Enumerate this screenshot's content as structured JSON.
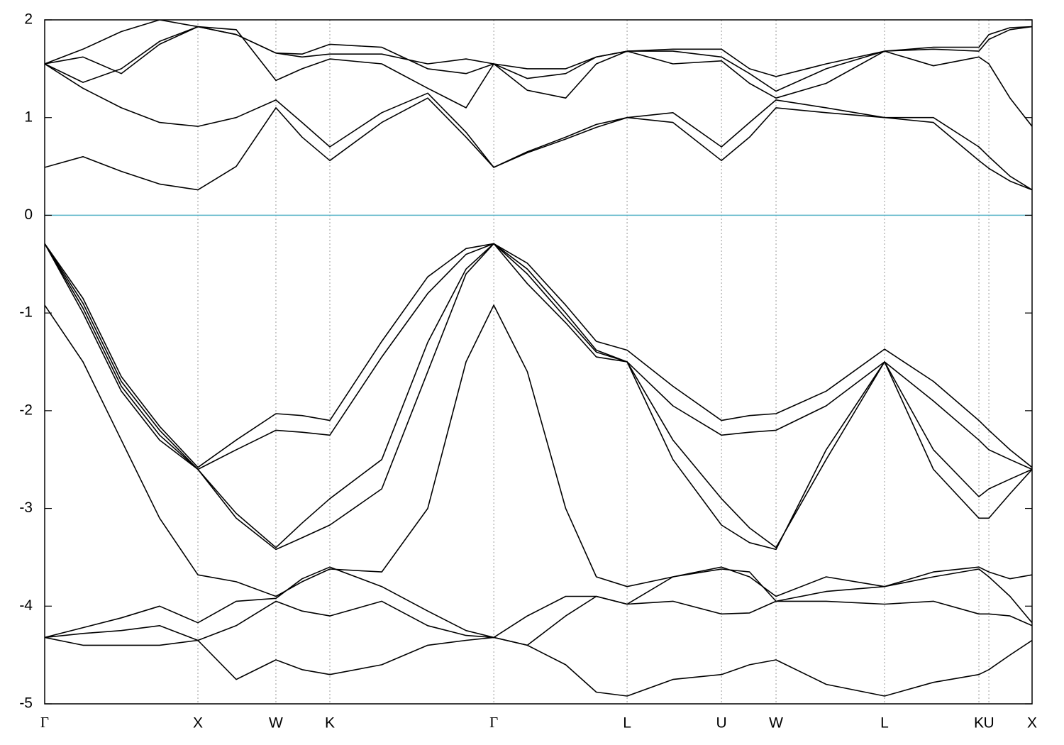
{
  "chart_data": {
    "type": "line",
    "x": [
      0,
      0.25,
      0.5,
      0.75,
      1,
      1.25,
      1.509,
      1.68,
      1.861,
      2.2,
      2.5,
      2.75,
      2.931,
      3.15,
      3.4,
      3.6,
      3.801,
      4.1,
      4.417,
      4.6,
      4.773,
      5.1,
      5.481,
      5.8,
      6.097,
      6.162,
      6.3,
      6.444
    ],
    "xlim": [
      0,
      6.444
    ],
    "xticks": [
      {
        "value": 0,
        "label": "Γ"
      },
      {
        "value": 1,
        "label": "X"
      },
      {
        "value": 1.509,
        "label": "W"
      },
      {
        "value": 1.861,
        "label": "K"
      },
      {
        "value": 2.931,
        "label": "Γ"
      },
      {
        "value": 3.801,
        "label": "L"
      },
      {
        "value": 4.417,
        "label": "U"
      },
      {
        "value": 4.773,
        "label": "W"
      },
      {
        "value": 5.481,
        "label": "L"
      },
      {
        "value": 6.097,
        "label": "K"
      },
      {
        "value": 6.162,
        "label": "U"
      },
      {
        "value": 6.444,
        "label": "X"
      }
    ],
    "ylim": [
      -5,
      2
    ],
    "yticks": [
      -5,
      -4,
      -3,
      -2,
      -1,
      0,
      1,
      2
    ],
    "grid": "x",
    "reference_line": {
      "value": 0,
      "color": "#5ab4c8"
    },
    "series": [
      {
        "color": "#000000",
        "values": [
          -0.29,
          -0.85,
          -1.65,
          -2.16,
          -2.58,
          -2.3,
          -2.03,
          -2.05,
          -2.1,
          -1.29,
          -0.63,
          -0.34,
          -0.29,
          -0.49,
          -0.92,
          -1.29,
          -1.38,
          -1.75,
          -2.1,
          -2.05,
          -2.03,
          -1.8,
          -1.37,
          -1.7,
          -2.1,
          -2.2,
          -2.4,
          -2.58
        ]
      },
      {
        "color": "#000000",
        "values": [
          -0.29,
          -0.95,
          -1.75,
          -2.25,
          -2.6,
          -2.4,
          -2.2,
          -2.22,
          -2.25,
          -1.45,
          -0.8,
          -0.4,
          -0.29,
          -0.6,
          -1.05,
          -1.4,
          -1.5,
          -1.95,
          -2.25,
          -2.22,
          -2.2,
          -1.95,
          -1.5,
          -1.9,
          -2.3,
          -2.4,
          -2.5,
          -2.6
        ]
      },
      {
        "color": "#000000",
        "values": [
          -0.29,
          -0.9,
          -1.7,
          -2.2,
          -2.6,
          -3.05,
          -3.4,
          -3.15,
          -2.9,
          -2.5,
          -1.3,
          -0.55,
          -0.29,
          -0.55,
          -1.0,
          -1.38,
          -1.5,
          -2.3,
          -2.9,
          -3.2,
          -3.4,
          -2.5,
          -1.5,
          -2.4,
          -2.88,
          -2.8,
          -2.7,
          -2.6
        ]
      },
      {
        "color": "#000000",
        "values": [
          -0.29,
          -1.0,
          -1.8,
          -2.3,
          -2.6,
          -3.1,
          -3.42,
          -3.3,
          -3.17,
          -2.8,
          -1.6,
          -0.6,
          -0.29,
          -0.7,
          -1.1,
          -1.45,
          -1.5,
          -2.5,
          -3.17,
          -3.35,
          -3.42,
          -2.4,
          -1.5,
          -2.6,
          -3.1,
          -3.1,
          -2.85,
          -2.6
        ]
      },
      {
        "color": "#000000",
        "values": [
          -0.92,
          -1.5,
          -2.3,
          -3.1,
          -3.68,
          -3.75,
          -3.9,
          -3.75,
          -3.62,
          -3.65,
          -3.0,
          -1.5,
          -0.92,
          -1.6,
          -3.0,
          -3.7,
          -3.8,
          -3.7,
          -3.6,
          -3.7,
          -3.9,
          -3.7,
          -3.8,
          -3.65,
          -3.6,
          -3.65,
          -3.72,
          -3.68
        ]
      },
      {
        "color": "#000000",
        "values": [
          -4.32,
          -4.22,
          -4.12,
          -4.0,
          -4.17,
          -3.95,
          -3.92,
          -3.72,
          -3.6,
          -3.8,
          -4.05,
          -4.25,
          -4.32,
          -4.1,
          -3.9,
          -3.9,
          -3.98,
          -3.7,
          -3.62,
          -3.65,
          -3.95,
          -3.85,
          -3.8,
          -3.7,
          -3.62,
          -3.7,
          -3.9,
          -4.17
        ]
      },
      {
        "color": "#000000",
        "values": [
          -4.32,
          -4.4,
          -4.4,
          -4.4,
          -4.35,
          -4.2,
          -3.95,
          -4.05,
          -4.1,
          -3.95,
          -4.2,
          -4.3,
          -4.32,
          -4.4,
          -4.1,
          -3.9,
          -3.98,
          -3.95,
          -4.08,
          -4.07,
          -3.95,
          -3.95,
          -3.98,
          -3.95,
          -4.08,
          -4.08,
          -4.1,
          -4.2
        ]
      },
      {
        "color": "#000000",
        "values": [
          -4.32,
          -4.28,
          -4.25,
          -4.2,
          -4.35,
          -4.75,
          -4.55,
          -4.65,
          -4.7,
          -4.6,
          -4.4,
          -4.35,
          -4.32,
          -4.4,
          -4.6,
          -4.88,
          -4.92,
          -4.75,
          -4.7,
          -4.6,
          -4.55,
          -4.8,
          -4.92,
          -4.78,
          -4.7,
          -4.65,
          -4.5,
          -4.35
        ]
      },
      {
        "color": "#000000",
        "values": [
          0.49,
          0.6,
          0.45,
          0.32,
          0.26,
          0.5,
          1.1,
          0.8,
          0.56,
          0.95,
          1.2,
          0.8,
          0.49,
          0.64,
          0.78,
          0.9,
          1.0,
          0.95,
          0.56,
          0.8,
          1.1,
          1.05,
          1.0,
          0.95,
          0.56,
          0.48,
          0.35,
          0.26
        ]
      },
      {
        "color": "#000000",
        "values": [
          1.55,
          1.3,
          1.1,
          0.95,
          0.91,
          1.0,
          1.18,
          0.95,
          0.7,
          1.05,
          1.25,
          0.85,
          0.49,
          0.65,
          0.8,
          0.93,
          1.0,
          1.05,
          0.7,
          0.95,
          1.18,
          1.1,
          1.0,
          1.0,
          0.7,
          0.6,
          0.4,
          0.26
        ]
      },
      {
        "color": "#000000",
        "values": [
          1.55,
          1.36,
          1.5,
          1.78,
          1.93,
          1.9,
          1.38,
          1.5,
          1.6,
          1.55,
          1.3,
          1.1,
          1.55,
          1.28,
          1.2,
          1.55,
          1.68,
          1.55,
          1.58,
          1.35,
          1.2,
          1.35,
          1.68,
          1.53,
          1.62,
          1.55,
          1.2,
          0.91
        ]
      },
      {
        "color": "#000000",
        "values": [
          1.55,
          1.62,
          1.45,
          1.75,
          1.93,
          1.85,
          1.66,
          1.65,
          1.75,
          1.72,
          1.5,
          1.45,
          1.55,
          1.4,
          1.45,
          1.62,
          1.68,
          1.68,
          1.62,
          1.45,
          1.27,
          1.5,
          1.68,
          1.7,
          1.68,
          1.8,
          1.9,
          1.93
        ]
      },
      {
        "color": "#000000",
        "values": [
          1.55,
          1.7,
          1.88,
          2.0,
          1.93,
          1.85,
          1.66,
          1.62,
          1.65,
          1.65,
          1.55,
          1.6,
          1.55,
          1.5,
          1.5,
          1.62,
          1.68,
          1.7,
          1.7,
          1.5,
          1.42,
          1.55,
          1.68,
          1.72,
          1.72,
          1.85,
          1.92,
          1.93
        ]
      }
    ]
  }
}
